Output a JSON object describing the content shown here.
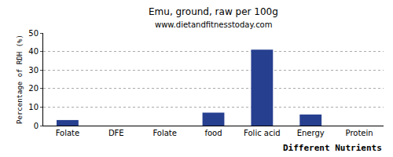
{
  "chart_data": {
    "type": "bar",
    "title": "Emu, ground, raw per 100g",
    "subtitle": "www.dietandfitnesstoday.com",
    "x_label": "Different Nutrients",
    "y_label": "Percentage of RDH (%)",
    "categories": [
      "Folate",
      "DFE",
      "Folate",
      "food",
      "Folic acid",
      "Energy",
      "Protein"
    ],
    "values": [
      3,
      0,
      0,
      7,
      41,
      6,
      0
    ],
    "color": "#263f8f",
    "ylim": [
      0,
      50
    ],
    "yticks": [
      0,
      10,
      20,
      30,
      40,
      50
    ],
    "grid": true
  }
}
